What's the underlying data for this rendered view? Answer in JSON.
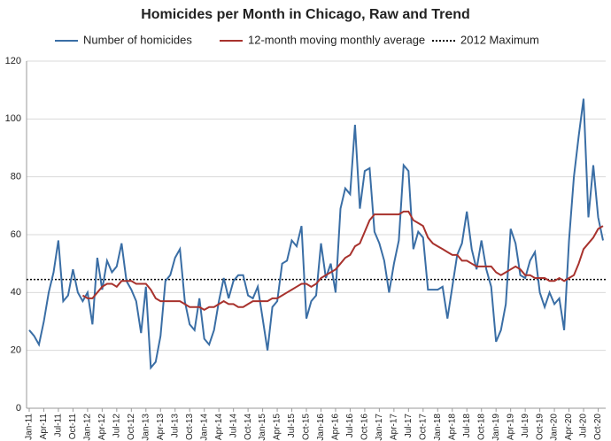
{
  "chart_data": {
    "type": "line",
    "title": "Homicides per Month in Chicago, Raw and Trend",
    "categories": [
      "Jan-11",
      null,
      null,
      "Apr-11",
      null,
      null,
      "Jul-11",
      null,
      null,
      "Oct-11",
      null,
      null,
      "Jan-12",
      null,
      null,
      "Apr-12",
      null,
      null,
      "Jul-12",
      null,
      null,
      "Oct-12",
      null,
      null,
      "Jan-13",
      null,
      null,
      "Apr-13",
      null,
      null,
      "Jul-13",
      null,
      null,
      "Oct-13",
      null,
      null,
      "Jan-14",
      null,
      null,
      "Apr-14",
      null,
      null,
      "Jul-14",
      null,
      null,
      "Oct-14",
      null,
      null,
      "Jan-15",
      null,
      null,
      "Apr-15",
      null,
      null,
      "Jul-15",
      null,
      null,
      "Oct-15",
      null,
      null,
      "Jan-16",
      null,
      null,
      "Apr-16",
      null,
      null,
      "Jul-16",
      null,
      null,
      "Oct-16",
      null,
      null,
      "Jan-17",
      null,
      null,
      "Apr-17",
      null,
      null,
      "Jul-17",
      null,
      null,
      "Oct-17",
      null,
      null,
      "Jan-18",
      null,
      null,
      "Apr-18",
      null,
      null,
      "Jul-18",
      null,
      null,
      "Oct-18",
      null,
      null,
      "Jan-19",
      null,
      null,
      "Apr-19",
      null,
      null,
      "Jul-19",
      null,
      null,
      "Oct-19",
      null,
      null,
      "Jan-20",
      null,
      null,
      "Apr-20",
      null,
      null,
      "Jul-20",
      null,
      null,
      "Oct-20",
      null
    ],
    "series": [
      {
        "name": "Number of homicides",
        "color": "#3a6ea5",
        "values": [
          27,
          25,
          22,
          30,
          40,
          47,
          58,
          37,
          39,
          48,
          40,
          37,
          40,
          29,
          52,
          41,
          51,
          47,
          49,
          57,
          44,
          41,
          37,
          26,
          42,
          14,
          16,
          25,
          44,
          46,
          52,
          55,
          37,
          29,
          27,
          38,
          24,
          22,
          27,
          37,
          45,
          38,
          44,
          46,
          46,
          39,
          38,
          42,
          31,
          20,
          35,
          37,
          50,
          51,
          58,
          56,
          63,
          31,
          37,
          39,
          57,
          45,
          50,
          40,
          69,
          76,
          74,
          98,
          69,
          82,
          83,
          61,
          57,
          51,
          40,
          50,
          58,
          84,
          82,
          55,
          61,
          59,
          41,
          41,
          41,
          42,
          31,
          42,
          53,
          57,
          68,
          55,
          48,
          58,
          48,
          42,
          23,
          27,
          36,
          62,
          57,
          46,
          45,
          51,
          54,
          40,
          35,
          40,
          36,
          38,
          27,
          58,
          80,
          94,
          107,
          66,
          84,
          66,
          58
        ]
      },
      {
        "name": "12-month moving monthly average",
        "color": "#a8322d",
        "values": [
          null,
          null,
          null,
          null,
          null,
          null,
          null,
          null,
          null,
          null,
          null,
          39,
          38,
          38,
          40,
          42,
          43,
          43,
          42,
          44,
          44,
          44,
          43,
          43,
          43,
          41,
          38,
          37,
          37,
          37,
          37,
          37,
          36,
          35,
          35,
          35,
          34,
          35,
          35,
          36,
          37,
          36,
          36,
          35,
          35,
          36,
          37,
          37,
          37,
          37,
          38,
          38,
          39,
          40,
          41,
          42,
          43,
          43,
          42,
          43,
          45,
          46,
          47,
          48,
          50,
          52,
          53,
          56,
          57,
          61,
          65,
          67,
          67,
          67,
          67,
          67,
          67,
          68,
          68,
          65,
          64,
          63,
          59,
          57,
          56,
          55,
          54,
          53,
          53,
          51,
          51,
          50,
          49,
          49,
          49,
          49,
          47,
          46,
          47,
          48,
          49,
          48,
          46,
          46,
          45,
          45,
          45,
          44,
          44,
          45,
          44,
          45,
          46,
          50,
          55,
          57,
          59,
          62,
          63
        ]
      }
    ],
    "reference_lines": [
      {
        "name": "2012 Maximum",
        "value": 44.5,
        "color": "#000000"
      }
    ],
    "ylim": [
      0,
      120
    ],
    "yticks": [
      0,
      20,
      40,
      60,
      80,
      100,
      120
    ],
    "grid": true
  }
}
